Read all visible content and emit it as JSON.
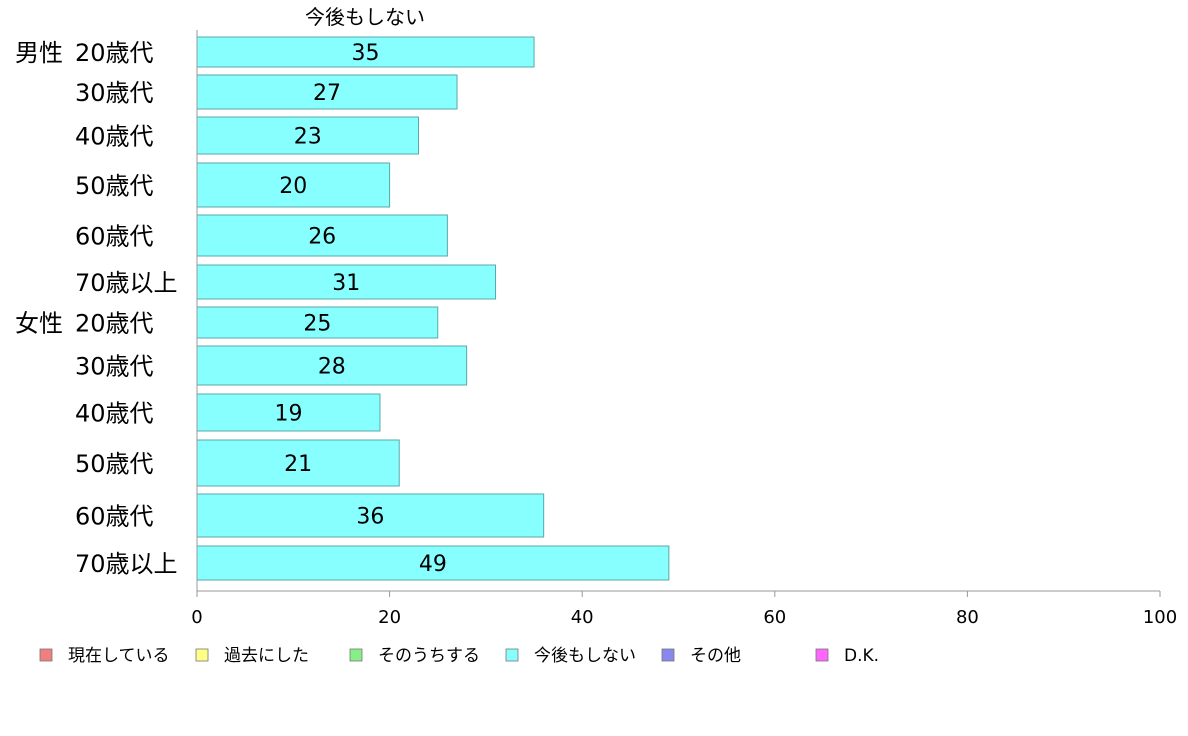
{
  "chart_data": {
    "type": "bar",
    "orientation": "horizontal",
    "series_title": "今後もしない",
    "groups": [
      {
        "label": "男性",
        "first_index": 0
      },
      {
        "label": "女性",
        "first_index": 6
      }
    ],
    "categories": [
      "20歳代",
      "30歳代",
      "40歳代",
      "50歳代",
      "60歳代",
      "70歳以上",
      "20歳代",
      "30歳代",
      "40歳代",
      "50歳代",
      "60歳代",
      "70歳以上"
    ],
    "series": [
      {
        "name": "今後もしない",
        "color": "#88ffff",
        "values": [
          35,
          27,
          23,
          20,
          26,
          31,
          25,
          28,
          19,
          21,
          36,
          49
        ]
      }
    ],
    "xlim": [
      0,
      100
    ],
    "xticks": [
      0,
      20,
      40,
      60,
      80,
      100
    ],
    "legend": {
      "placement": "bottom",
      "items": [
        {
          "label": "現在している",
          "color": "#f08080"
        },
        {
          "label": "過去にした",
          "color": "#ffff88"
        },
        {
          "label": "そのうちする",
          "color": "#88ee88"
        },
        {
          "label": "今後もしない",
          "color": "#88ffff"
        },
        {
          "label": "その他",
          "color": "#8888ee"
        },
        {
          "label": "D.K.",
          "color": "#ff66ff"
        }
      ]
    }
  }
}
